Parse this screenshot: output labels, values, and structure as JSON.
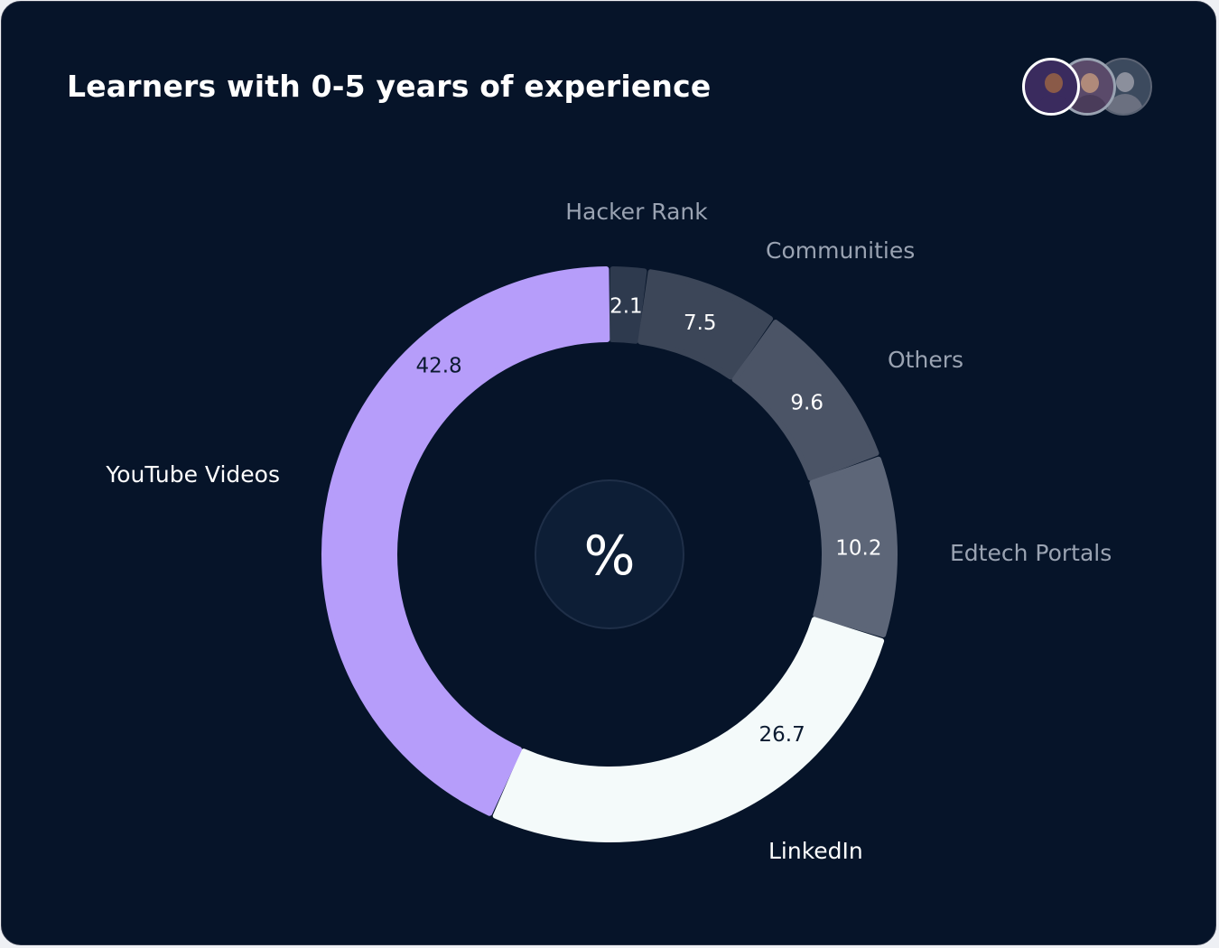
{
  "title": "Learners with 0-5 years of experience",
  "avatars": [
    {
      "name": "avatar-1",
      "color": "#3a2b5e"
    },
    {
      "name": "avatar-2",
      "color": "#5a4a6a"
    },
    {
      "name": "avatar-3",
      "color": "#3c4a5e"
    }
  ],
  "center_symbol": "%",
  "chart_data": {
    "type": "pie",
    "variant": "donut",
    "unit": "%",
    "slices": [
      {
        "label": "Hacker Rank",
        "value": 2.1,
        "color": "#2e3a4e",
        "label_color": "#9aa3b2",
        "value_color": "#ffffff"
      },
      {
        "label": "Communities",
        "value": 7.5,
        "color": "#3c4658",
        "label_color": "#9aa3b2",
        "value_color": "#ffffff"
      },
      {
        "label": "Others",
        "value": 9.6,
        "color": "#4b5466",
        "label_color": "#9aa3b2",
        "value_color": "#ffffff"
      },
      {
        "label": "Edtech Portals",
        "value": 10.2,
        "color": "#5d6678",
        "label_color": "#9aa3b2",
        "value_color": "#ffffff"
      },
      {
        "label": "LinkedIn",
        "value": 26.7,
        "color": "#f4fafa",
        "label_color": "#ffffff",
        "value_color": "#0b1a30"
      },
      {
        "label": "YouTube Videos",
        "value": 42.8,
        "color": "#b69dfa",
        "label_color": "#ffffff",
        "value_color": "#0b1a30"
      }
    ]
  }
}
